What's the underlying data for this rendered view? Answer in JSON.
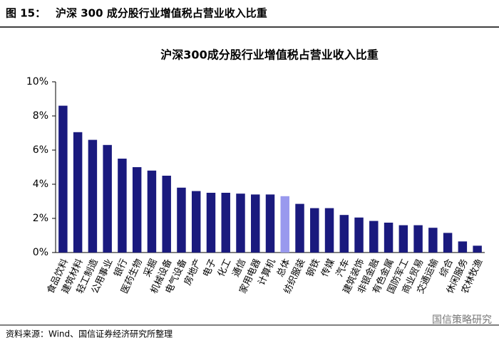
{
  "header": {
    "label": "图 15：",
    "title": "沪深 300 成分股行业增值税占营业收入比重"
  },
  "chart_data": {
    "type": "bar",
    "title": "沪深300成分股行业增值税占营业收入比重",
    "categories": [
      "食品饮料",
      "建筑材料",
      "轻工制造",
      "公用事业",
      "银行",
      "医药生物",
      "采掘",
      "机械设备",
      "电气设备",
      "房地产",
      "电子",
      "化工",
      "通信",
      "家用电器",
      "计算机",
      "总体",
      "纺织服装",
      "钢铁",
      "传媒",
      "汽车",
      "建筑装饰",
      "非银金融",
      "有色金属",
      "国防军工",
      "商业贸易",
      "交通运输",
      "综合",
      "休闲服务",
      "农林牧渔"
    ],
    "values": [
      8.6,
      7.05,
      6.6,
      6.3,
      5.5,
      5.0,
      4.8,
      4.5,
      3.8,
      3.6,
      3.5,
      3.5,
      3.45,
      3.4,
      3.4,
      3.3,
      2.85,
      2.6,
      2.6,
      2.2,
      2.05,
      1.85,
      1.75,
      1.6,
      1.6,
      1.45,
      1.15,
      0.65,
      0.4
    ],
    "colors": [
      "#1a1a7e",
      "#1a1a7e",
      "#1a1a7e",
      "#1a1a7e",
      "#1a1a7e",
      "#1a1a7e",
      "#1a1a7e",
      "#1a1a7e",
      "#1a1a7e",
      "#1a1a7e",
      "#1a1a7e",
      "#1a1a7e",
      "#1a1a7e",
      "#1a1a7e",
      "#1a1a7e",
      "#9999ee",
      "#1a1a7e",
      "#1a1a7e",
      "#1a1a7e",
      "#1a1a7e",
      "#1a1a7e",
      "#1a1a7e",
      "#1a1a7e",
      "#1a1a7e",
      "#1a1a7e",
      "#1a1a7e",
      "#1a1a7e",
      "#1a1a7e",
      "#1a1a7e"
    ],
    "ylim": [
      0,
      10
    ],
    "yticks": [
      {
        "value": 0,
        "label": "0%"
      },
      {
        "value": 2,
        "label": "2%"
      },
      {
        "value": 4,
        "label": "4%"
      },
      {
        "value": 6,
        "label": "6%"
      },
      {
        "value": 8,
        "label": "8%"
      },
      {
        "value": 10,
        "label": "10%"
      }
    ],
    "grid": false
  },
  "source": "资料来源：Wind、国信证券经济研究所整理",
  "watermark": "国信策略研究"
}
